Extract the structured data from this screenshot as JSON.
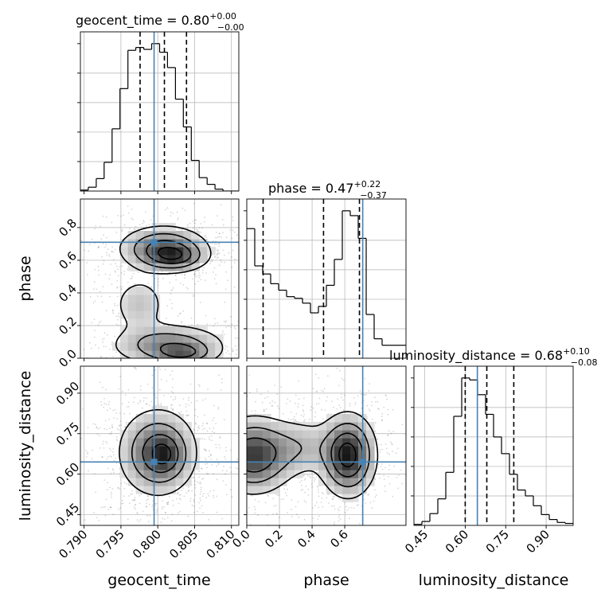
{
  "chart_data": {
    "type": "corner",
    "parameters": [
      "geocent_time",
      "phase",
      "luminosity_distance"
    ],
    "truth": {
      "geocent_time": 0.7995,
      "phase": 0.71,
      "luminosity_distance": 0.645
    },
    "colors": {
      "truth": "#4682b4",
      "hist": "#000000",
      "grid": "#b0b0b0",
      "quantile": "#000000"
    },
    "grid": true,
    "panels": {
      "geocent_time": {
        "title_main": "geocent_time = 0.80",
        "title_sup": "+0.00",
        "title_sub": "−0.00",
        "xlabel": "geocent_time",
        "xlim": [
          0.7895,
          0.811
        ],
        "xticks": [
          "0.790",
          "0.795",
          "0.800",
          "0.805",
          "0.810"
        ],
        "xtick_values": [
          0.79,
          0.795,
          0.8,
          0.805,
          0.81
        ],
        "hist_edges": [
          0.7895,
          0.79057,
          0.79165,
          0.79272,
          0.7938,
          0.79487,
          0.79595,
          0.79702,
          0.7981,
          0.79917,
          0.80025,
          0.80132,
          0.8024,
          0.80347,
          0.80455,
          0.80562,
          0.8067,
          0.80777,
          0.80885,
          0.80992,
          0.811
        ],
        "hist_values": [
          1,
          4,
          13,
          30,
          65,
          107,
          147,
          150,
          148,
          154,
          145,
          129,
          96,
          67,
          32,
          14,
          7,
          2,
          0,
          0
        ],
        "quantiles": [
          0.7976,
          0.8009,
          0.8039
        ]
      },
      "phase": {
        "title_main": "phase = 0.47",
        "title_sup": "+0.22",
        "title_sub": "−0.37",
        "xlabel": "phase",
        "xlim": [
          0.0,
          0.975
        ],
        "xticks": [
          "0.0",
          "0.2",
          "0.4",
          "0.6"
        ],
        "xtick_values": [
          0.0,
          0.2,
          0.4,
          0.6
        ],
        "ylabel": "phase",
        "ylim": [
          0.0,
          0.975
        ],
        "yticks": [
          "0.0",
          "0.2",
          "0.4",
          "0.6",
          "0.8"
        ],
        "ytick_values": [
          0.0,
          0.2,
          0.4,
          0.6,
          0.8
        ],
        "hist_edges": [
          0.0,
          0.04875,
          0.0975,
          0.14625,
          0.195,
          0.24375,
          0.2925,
          0.34125,
          0.39,
          0.43875,
          0.4875,
          0.53625,
          0.585,
          0.63375,
          0.6825,
          0.73125,
          0.78,
          0.82875,
          0.8775,
          0.92625,
          0.975
        ],
        "hist_values": [
          80,
          57,
          52,
          46,
          42,
          38,
          37,
          34,
          28,
          32,
          45,
          61,
          91,
          88,
          74,
          27,
          12,
          8,
          8,
          8
        ],
        "quantiles": [
          0.1,
          0.47,
          0.69
        ]
      },
      "luminosity_distance": {
        "title_main": "luminosity_distance = 0.68",
        "title_sup": "+0.10",
        "title_sub": "−0.08",
        "xlabel": "luminosity_distance",
        "xlim": [
          0.41,
          1.0
        ],
        "xticks": [
          "0.45",
          "0.60",
          "0.75",
          "0.90"
        ],
        "xtick_values": [
          0.45,
          0.6,
          0.75,
          0.9
        ],
        "ylabel": "luminosity_distance",
        "ylim": [
          0.41,
          1.0
        ],
        "yticks": [
          "0.45",
          "0.60",
          "0.75",
          "0.90"
        ],
        "ytick_values": [
          0.45,
          0.6,
          0.75,
          0.9
        ],
        "hist_edges": [
          0.41,
          0.4395,
          0.469,
          0.4985,
          0.528,
          0.5575,
          0.587,
          0.6165,
          0.646,
          0.6755,
          0.705,
          0.7345,
          0.764,
          0.7935,
          0.823,
          0.8525,
          0.882,
          0.9115,
          0.941,
          0.9705,
          1.0
        ],
        "hist_values": [
          1,
          4,
          12,
          27,
          54,
          111,
          150,
          148,
          133,
          113,
          90,
          73,
          52,
          36,
          30,
          20,
          11,
          6,
          3,
          2
        ],
        "quantiles": [
          0.6,
          0.68,
          0.78
        ]
      }
    },
    "density_2d": [
      {
        "x": "geocent_time",
        "y": "phase",
        "blobs": [
          {
            "x": 0.8008,
            "y": 0.67,
            "sx": 0.0032,
            "sy": 0.075,
            "w": 1.0
          },
          {
            "x": 0.8025,
            "y": 0.62,
            "sx": 0.0022,
            "sy": 0.045,
            "w": 0.6
          },
          {
            "x": 0.7975,
            "y": 0.33,
            "sx": 0.0022,
            "sy": 0.1,
            "w": 0.35
          },
          {
            "x": 0.8015,
            "y": 0.08,
            "sx": 0.0042,
            "sy": 0.07,
            "w": 0.75
          },
          {
            "x": 0.8035,
            "y": 0.03,
            "sx": 0.0022,
            "sy": 0.035,
            "w": 0.55
          }
        ]
      },
      {
        "x": "geocent_time",
        "y": "luminosity_distance",
        "blobs": [
          {
            "x": 0.8,
            "y": 0.68,
            "sx": 0.0028,
            "sy": 0.085,
            "w": 1.0
          },
          {
            "x": 0.801,
            "y": 0.67,
            "sx": 0.0015,
            "sy": 0.045,
            "w": 0.4
          }
        ]
      },
      {
        "x": "phase",
        "y": "luminosity_distance",
        "blobs": [
          {
            "x": 0.04,
            "y": 0.67,
            "sx": 0.13,
            "sy": 0.075,
            "w": 0.85
          },
          {
            "x": 0.62,
            "y": 0.67,
            "sx": 0.09,
            "sy": 0.08,
            "w": 1.0
          },
          {
            "x": 0.33,
            "y": 0.7,
            "sx": 0.13,
            "sy": 0.06,
            "w": 0.28
          }
        ]
      }
    ]
  }
}
